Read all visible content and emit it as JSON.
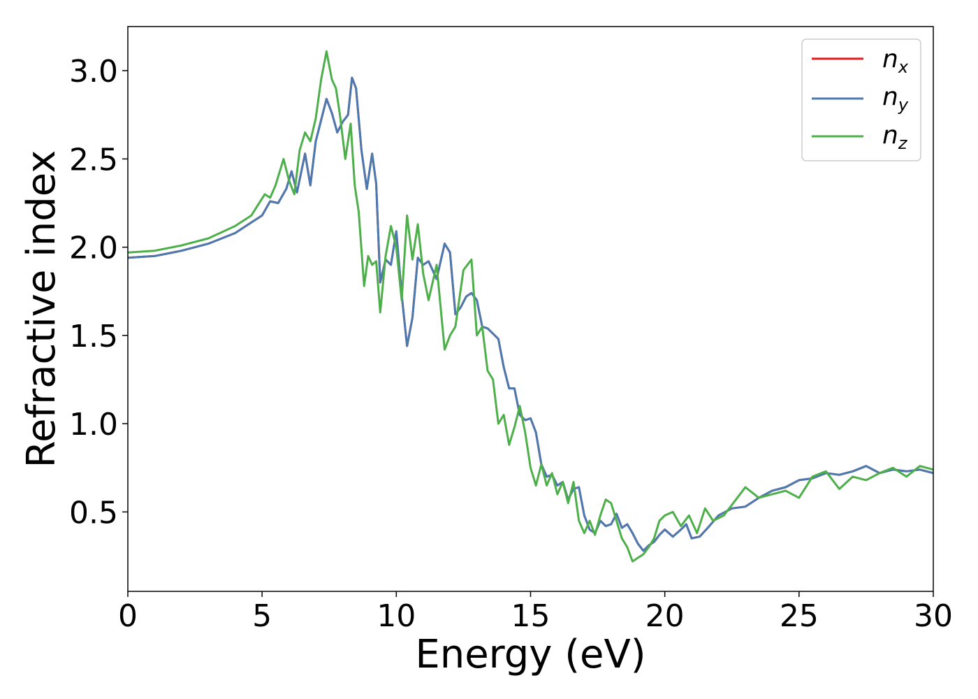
{
  "chart_data": {
    "type": "line",
    "xlabel": "Energy (eV)",
    "ylabel": "Refractive index",
    "xlim": [
      0,
      30
    ],
    "ylim": [
      0.05,
      3.25
    ],
    "xticks": [
      "0",
      "5",
      "10",
      "15",
      "20",
      "25",
      "30"
    ],
    "yticks": [
      "0.5",
      "1.0",
      "1.5",
      "2.0",
      "2.5",
      "3.0"
    ],
    "grid": false,
    "legend_position": "top-right",
    "series": [
      {
        "name": "n_x",
        "legend_main": "n",
        "legend_sub": "x",
        "color": "#e41a1c",
        "x": [
          0,
          1,
          2,
          3,
          4,
          4.5,
          5,
          5.3,
          5.6,
          5.9,
          6.1,
          6.3,
          6.6,
          6.8,
          7.0,
          7.2,
          7.4,
          7.6,
          7.8,
          8.0,
          8.2,
          8.35,
          8.5,
          8.7,
          8.9,
          9.1,
          9.25,
          9.4,
          9.6,
          9.8,
          10.0,
          10.2,
          10.4,
          10.6,
          10.8,
          11.0,
          11.2,
          11.5,
          11.8,
          12.0,
          12.2,
          12.4,
          12.6,
          12.8,
          13.0,
          13.2,
          13.4,
          13.6,
          13.8,
          14.0,
          14.2,
          14.4,
          14.6,
          14.8,
          15.0,
          15.2,
          15.4,
          15.6,
          15.8,
          16.0,
          16.2,
          16.4,
          16.6,
          16.8,
          17.0,
          17.2,
          17.4,
          17.6,
          17.8,
          18.0,
          18.2,
          18.4,
          18.6,
          18.8,
          19.0,
          19.2,
          19.4,
          19.6,
          19.8,
          20.0,
          20.3,
          20.6,
          20.8,
          21.0,
          21.3,
          21.6,
          22.0,
          22.5,
          23.0,
          23.5,
          24.0,
          24.5,
          25.0,
          25.5,
          26.0,
          26.5,
          27.0,
          27.5,
          28.0,
          28.5,
          29.0,
          29.5,
          30.0
        ],
        "y": [
          1.94,
          1.95,
          1.98,
          2.02,
          2.08,
          2.13,
          2.18,
          2.26,
          2.25,
          2.33,
          2.43,
          2.31,
          2.53,
          2.35,
          2.6,
          2.72,
          2.84,
          2.76,
          2.65,
          2.71,
          2.75,
          2.96,
          2.9,
          2.55,
          2.33,
          2.53,
          2.36,
          1.8,
          1.93,
          1.9,
          2.09,
          1.73,
          1.44,
          1.6,
          1.94,
          1.9,
          1.92,
          1.82,
          2.02,
          1.97,
          1.62,
          1.66,
          1.72,
          1.74,
          1.7,
          1.55,
          1.54,
          1.51,
          1.48,
          1.32,
          1.2,
          1.2,
          1.05,
          1.02,
          1.03,
          0.95,
          0.77,
          0.7,
          0.71,
          0.65,
          0.67,
          0.57,
          0.63,
          0.64,
          0.48,
          0.4,
          0.38,
          0.45,
          0.42,
          0.43,
          0.49,
          0.41,
          0.43,
          0.38,
          0.32,
          0.28,
          0.31,
          0.33,
          0.37,
          0.4,
          0.36,
          0.4,
          0.43,
          0.35,
          0.36,
          0.41,
          0.48,
          0.52,
          0.53,
          0.58,
          0.62,
          0.64,
          0.68,
          0.69,
          0.72,
          0.71,
          0.73,
          0.76,
          0.72,
          0.74,
          0.73,
          0.74,
          0.72
        ]
      },
      {
        "name": "n_y",
        "legend_main": "n",
        "legend_sub": "y",
        "color": "#4a7ab0",
        "x": [
          0,
          1,
          2,
          3,
          4,
          4.5,
          5,
          5.3,
          5.6,
          5.9,
          6.1,
          6.3,
          6.6,
          6.8,
          7.0,
          7.2,
          7.4,
          7.6,
          7.8,
          8.0,
          8.2,
          8.35,
          8.5,
          8.7,
          8.9,
          9.1,
          9.25,
          9.4,
          9.6,
          9.8,
          10.0,
          10.2,
          10.4,
          10.6,
          10.8,
          11.0,
          11.2,
          11.5,
          11.8,
          12.0,
          12.2,
          12.4,
          12.6,
          12.8,
          13.0,
          13.2,
          13.4,
          13.6,
          13.8,
          14.0,
          14.2,
          14.4,
          14.6,
          14.8,
          15.0,
          15.2,
          15.4,
          15.6,
          15.8,
          16.0,
          16.2,
          16.4,
          16.6,
          16.8,
          17.0,
          17.2,
          17.4,
          17.6,
          17.8,
          18.0,
          18.2,
          18.4,
          18.6,
          18.8,
          19.0,
          19.2,
          19.4,
          19.6,
          19.8,
          20.0,
          20.3,
          20.6,
          20.8,
          21.0,
          21.3,
          21.6,
          22.0,
          22.5,
          23.0,
          23.5,
          24.0,
          24.5,
          25.0,
          25.5,
          26.0,
          26.5,
          27.0,
          27.5,
          28.0,
          28.5,
          29.0,
          29.5,
          30.0
        ],
        "y": [
          1.94,
          1.95,
          1.98,
          2.02,
          2.08,
          2.13,
          2.18,
          2.26,
          2.25,
          2.33,
          2.43,
          2.31,
          2.53,
          2.35,
          2.6,
          2.72,
          2.84,
          2.76,
          2.65,
          2.71,
          2.75,
          2.96,
          2.9,
          2.55,
          2.33,
          2.53,
          2.36,
          1.8,
          1.93,
          1.9,
          2.09,
          1.73,
          1.44,
          1.6,
          1.94,
          1.9,
          1.92,
          1.82,
          2.02,
          1.97,
          1.62,
          1.66,
          1.72,
          1.74,
          1.7,
          1.55,
          1.54,
          1.51,
          1.48,
          1.32,
          1.2,
          1.2,
          1.05,
          1.02,
          1.03,
          0.95,
          0.77,
          0.7,
          0.71,
          0.65,
          0.67,
          0.57,
          0.63,
          0.64,
          0.48,
          0.4,
          0.38,
          0.45,
          0.42,
          0.43,
          0.49,
          0.41,
          0.43,
          0.38,
          0.32,
          0.28,
          0.31,
          0.33,
          0.37,
          0.4,
          0.36,
          0.4,
          0.43,
          0.35,
          0.36,
          0.41,
          0.48,
          0.52,
          0.53,
          0.58,
          0.62,
          0.64,
          0.68,
          0.69,
          0.72,
          0.71,
          0.73,
          0.76,
          0.72,
          0.74,
          0.73,
          0.74,
          0.72
        ]
      },
      {
        "name": "n_z",
        "legend_main": "n",
        "legend_sub": "z",
        "color": "#4daf4a",
        "x": [
          0,
          1,
          2,
          3,
          4,
          4.6,
          5.1,
          5.3,
          5.5,
          5.8,
          6.0,
          6.2,
          6.4,
          6.6,
          6.8,
          7.0,
          7.2,
          7.4,
          7.6,
          7.75,
          7.9,
          8.1,
          8.3,
          8.45,
          8.6,
          8.8,
          8.95,
          9.1,
          9.25,
          9.4,
          9.6,
          9.8,
          10.0,
          10.2,
          10.4,
          10.6,
          10.8,
          11.0,
          11.2,
          11.5,
          11.8,
          12.0,
          12.2,
          12.5,
          12.8,
          13.0,
          13.2,
          13.4,
          13.6,
          13.8,
          14.0,
          14.2,
          14.4,
          14.6,
          14.8,
          15.0,
          15.2,
          15.4,
          15.6,
          15.8,
          16.0,
          16.2,
          16.4,
          16.6,
          16.8,
          17.0,
          17.2,
          17.4,
          17.6,
          17.8,
          18.0,
          18.2,
          18.4,
          18.6,
          18.8,
          19.0,
          19.2,
          19.4,
          19.6,
          19.8,
          20.0,
          20.3,
          20.6,
          20.9,
          21.2,
          21.5,
          21.8,
          22.2,
          22.6,
          23.0,
          23.5,
          24.0,
          24.5,
          25.0,
          25.5,
          26.0,
          26.5,
          27.0,
          27.5,
          28.0,
          28.5,
          29.0,
          29.5,
          30.0
        ],
        "y": [
          1.97,
          1.98,
          2.01,
          2.05,
          2.12,
          2.18,
          2.3,
          2.28,
          2.35,
          2.5,
          2.38,
          2.3,
          2.55,
          2.65,
          2.6,
          2.73,
          2.95,
          3.11,
          2.95,
          2.9,
          2.75,
          2.5,
          2.7,
          2.35,
          2.2,
          1.78,
          1.95,
          1.9,
          1.92,
          1.63,
          1.95,
          2.12,
          2.0,
          1.7,
          2.18,
          1.93,
          2.13,
          1.85,
          1.7,
          1.9,
          1.42,
          1.5,
          1.55,
          1.87,
          1.93,
          1.5,
          1.55,
          1.3,
          1.25,
          1.0,
          1.05,
          0.88,
          0.98,
          1.1,
          0.95,
          0.75,
          0.65,
          0.77,
          0.65,
          0.72,
          0.6,
          0.67,
          0.55,
          0.67,
          0.45,
          0.38,
          0.45,
          0.37,
          0.48,
          0.57,
          0.55,
          0.45,
          0.35,
          0.3,
          0.22,
          0.24,
          0.26,
          0.3,
          0.35,
          0.45,
          0.48,
          0.5,
          0.42,
          0.48,
          0.38,
          0.52,
          0.45,
          0.48,
          0.56,
          0.64,
          0.58,
          0.6,
          0.62,
          0.58,
          0.7,
          0.73,
          0.63,
          0.7,
          0.68,
          0.72,
          0.75,
          0.7,
          0.76,
          0.74
        ]
      }
    ]
  }
}
